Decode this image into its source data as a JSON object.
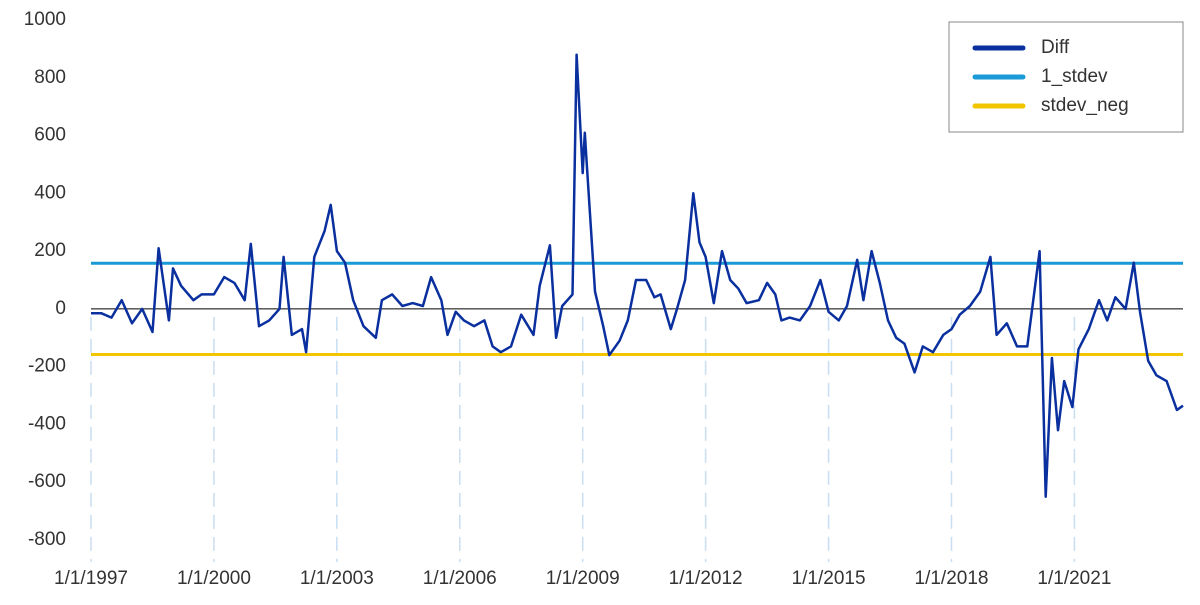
{
  "chart_data": {
    "type": "line",
    "xlim": [
      1997,
      2023.65
    ],
    "ylim": [
      -800,
      1000
    ],
    "yticks": [
      -800,
      -600,
      -400,
      -200,
      0,
      200,
      400,
      600,
      800,
      1000
    ],
    "xticks": [
      {
        "value": 1997,
        "label": "1/1/1997"
      },
      {
        "value": 2000,
        "label": "1/1/2000"
      },
      {
        "value": 2003,
        "label": "1/1/2003"
      },
      {
        "value": 2006,
        "label": "1/1/2006"
      },
      {
        "value": 2009,
        "label": "1/1/2009"
      },
      {
        "value": 2012,
        "label": "1/1/2012"
      },
      {
        "value": 2015,
        "label": "1/1/2015"
      },
      {
        "value": 2018,
        "label": "1/1/2018"
      },
      {
        "value": 2021,
        "label": "1/1/2021"
      }
    ],
    "xgrid": true,
    "legend": "top-right",
    "series": [
      {
        "name": "Diff",
        "color": "#0a2f9e",
        "x": [
          1997,
          1997.25,
          1997.5,
          1997.75,
          1998,
          1998.25,
          1998.5,
          1998.65,
          1998.9,
          1999,
          1999.2,
          1999.5,
          1999.7,
          2000,
          2000.25,
          2000.5,
          2000.75,
          2000.9,
          2001.1,
          2001.35,
          2001.6,
          2001.7,
          2001.9,
          2002.15,
          2002.25,
          2002.45,
          2002.7,
          2002.85,
          2003,
          2003.2,
          2003.4,
          2003.65,
          2003.95,
          2004.1,
          2004.35,
          2004.6,
          2004.85,
          2005.1,
          2005.3,
          2005.55,
          2005.7,
          2005.9,
          2006.1,
          2006.35,
          2006.6,
          2006.8,
          2007,
          2007.25,
          2007.5,
          2007.8,
          2007.95,
          2008.2,
          2008.35,
          2008.5,
          2008.75,
          2008.85,
          2009,
          2009.05,
          2009.1,
          2009.3,
          2009.5,
          2009.65,
          2009.9,
          2010.1,
          2010.3,
          2010.55,
          2010.75,
          2010.9,
          2011.15,
          2011.3,
          2011.5,
          2011.7,
          2011.85,
          2012,
          2012.2,
          2012.4,
          2012.6,
          2012.8,
          2013,
          2013.3,
          2013.5,
          2013.7,
          2013.85,
          2014.05,
          2014.3,
          2014.55,
          2014.8,
          2015,
          2015.25,
          2015.45,
          2015.7,
          2015.85,
          2016.05,
          2016.25,
          2016.45,
          2016.65,
          2016.85,
          2017.1,
          2017.3,
          2017.55,
          2017.8,
          2018,
          2018.2,
          2018.45,
          2018.7,
          2018.95,
          2019.1,
          2019.35,
          2019.6,
          2019.85,
          2020.15,
          2020.3,
          2020.45,
          2020.6,
          2020.75,
          2020.95,
          2021.1,
          2021.35,
          2021.6,
          2021.8,
          2022,
          2022.25,
          2022.45,
          2022.6,
          2022.8,
          2023,
          2023.25,
          2023.5,
          2023.65
        ],
        "values": [
          -15,
          -15,
          -30,
          30,
          -50,
          0,
          -80,
          210,
          -40,
          140,
          80,
          30,
          50,
          50,
          110,
          90,
          30,
          225,
          -60,
          -40,
          0,
          180,
          -90,
          -70,
          -150,
          180,
          270,
          360,
          200,
          160,
          30,
          -60,
          -100,
          30,
          50,
          10,
          20,
          10,
          110,
          30,
          -90,
          -10,
          -40,
          -60,
          -40,
          -130,
          -150,
          -130,
          -20,
          -90,
          80,
          220,
          -100,
          10,
          50,
          880,
          470,
          610,
          500,
          60,
          -60,
          -160,
          -110,
          -40,
          100,
          100,
          40,
          50,
          -70,
          0,
          100,
          400,
          230,
          180,
          20,
          200,
          100,
          70,
          20,
          30,
          90,
          50,
          -40,
          -30,
          -40,
          10,
          100,
          -10,
          -40,
          10,
          170,
          30,
          200,
          90,
          -40,
          -100,
          -120,
          -220,
          -130,
          -150,
          -90,
          -70,
          -20,
          10,
          60,
          180,
          -90,
          -50,
          -130,
          -130,
          200,
          -650,
          -170,
          -420,
          -250,
          -340,
          -140,
          -70,
          30,
          -40,
          40,
          0,
          160,
          -10,
          -180,
          -230,
          -250,
          -350,
          -335
        ]
      },
      {
        "name": "1_stdev",
        "color": "#1a9ad6",
        "x": [
          1997,
          2023.65
        ],
        "values": [
          158,
          158
        ]
      },
      {
        "name": "stdev_neg",
        "color": "#f2c500",
        "x": [
          1997,
          2023.65
        ],
        "values": [
          -158,
          -158
        ]
      }
    ]
  }
}
